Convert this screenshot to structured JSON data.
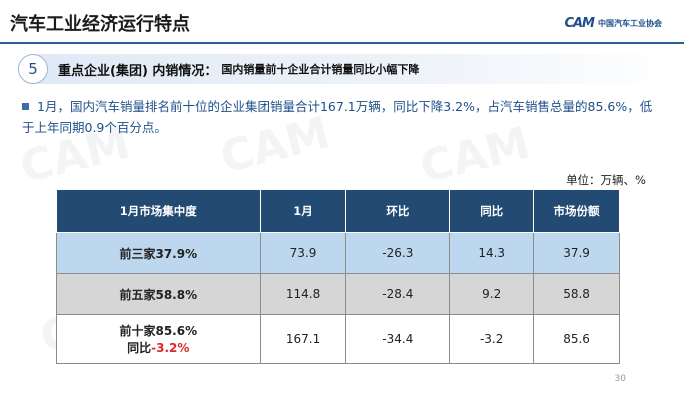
{
  "header": {
    "title": "汽车工业经济运行特点",
    "logo_mark": "CAM",
    "logo_text": "中国汽车工业协会"
  },
  "section": {
    "number": "5",
    "heading": "重点企业(集团) 内销情况：",
    "subheading": "国内销量前十企业合计销量同比小幅下降"
  },
  "bullet": {
    "text": "1月，国内汽车销量排名前十位的企业集团销量合计167.1万辆，同比下降3.2%，占汽车销售总量的85.6%，低于上年同期0.9个百分点。"
  },
  "unit": "单位：万辆、%",
  "table": {
    "headers": [
      "1月市场集中度",
      "1月",
      "环比",
      "同比",
      "市场份额"
    ],
    "rows": [
      {
        "label": "前三家37.9%",
        "c1": "73.9",
        "c2": "-26.3",
        "c3": "14.3",
        "c4": "37.9"
      },
      {
        "label": "前五家58.8%",
        "c1": "114.8",
        "c2": "-28.4",
        "c3": "9.2",
        "c4": "58.8"
      },
      {
        "label": "前十家85.6%",
        "label2_prefix": "同比",
        "label2_value": "-3.2%",
        "c1": "167.1",
        "c2": "-34.4",
        "c3": "-3.2",
        "c4": "85.6"
      }
    ]
  },
  "page_number": "30",
  "colors": {
    "brand": "#1f4f8a",
    "table_header": "#234a73",
    "row1": "#bdd7ee",
    "row2": "#d6d6d6",
    "highlight": "#e0282a"
  }
}
